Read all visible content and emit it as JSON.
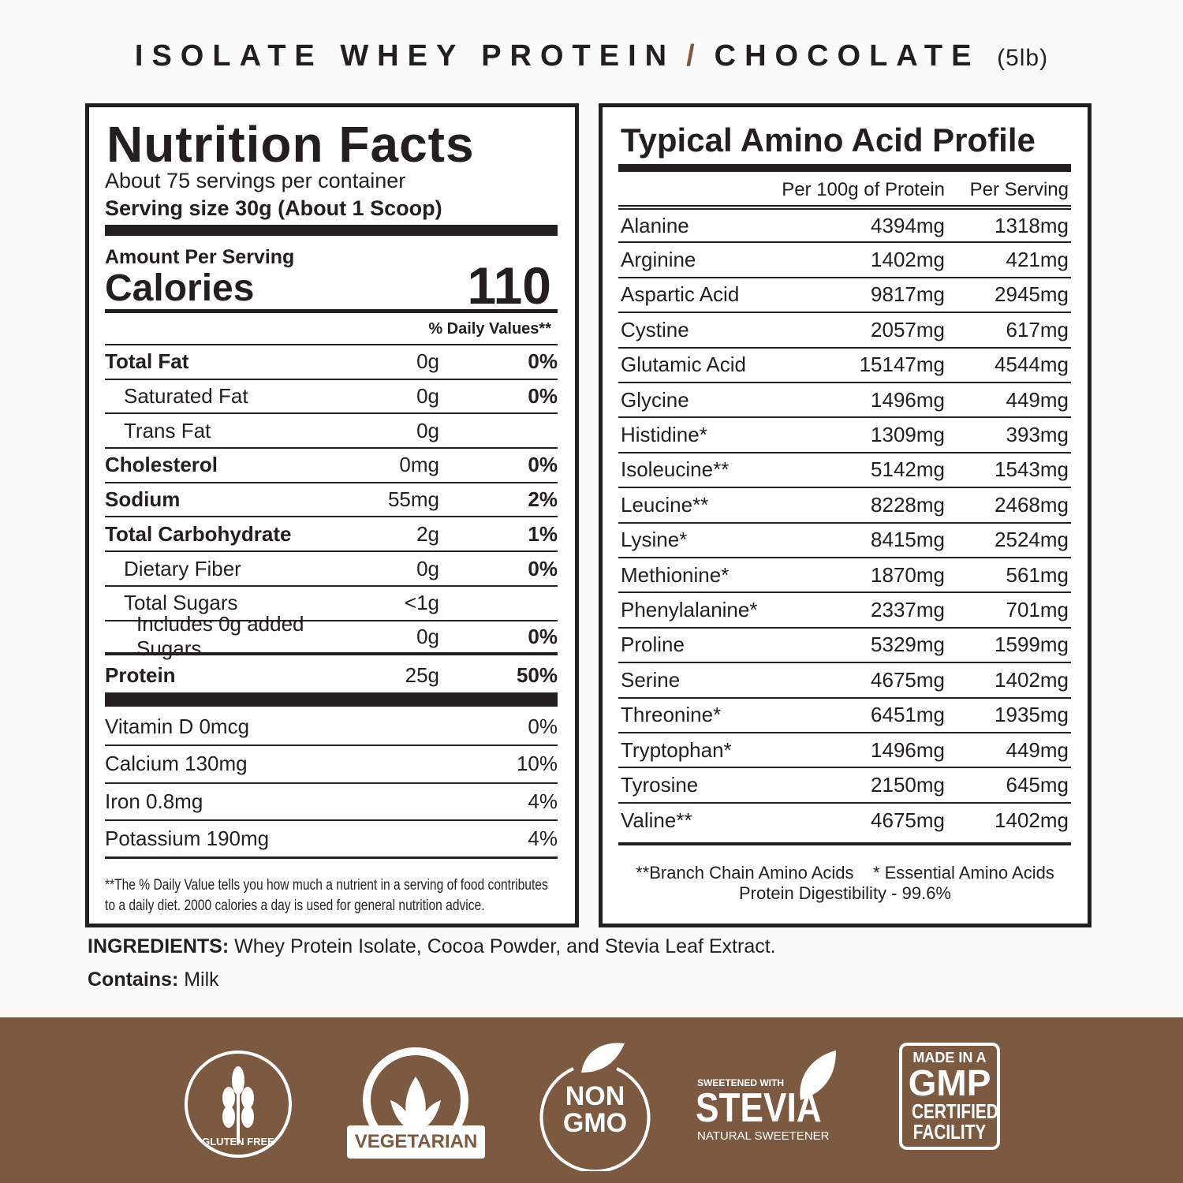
{
  "title": {
    "product": "ISOLATE WHEY PROTEIN",
    "separator": "/",
    "flavor": "CHOCOLATE",
    "size": "(5lb)"
  },
  "nutrition": {
    "heading": "Nutrition Facts",
    "servings": "About 75 servings per container",
    "serving_size": "Serving size 30g (About 1 Scoop)",
    "amount_label": "Amount Per Serving",
    "calories_label": "Calories",
    "calories": "110",
    "dv_header": "% Daily Values**",
    "rows": [
      {
        "name": "Total Fat",
        "amount": "0g",
        "dv": "0%",
        "bold": true,
        "indent": 0
      },
      {
        "name": "Saturated Fat",
        "amount": "0g",
        "dv": "0%",
        "bold": false,
        "indent": 1
      },
      {
        "name": "Trans Fat",
        "amount": "0g",
        "dv": "",
        "bold": false,
        "indent": 1
      },
      {
        "name": "Cholesterol",
        "amount": "0mg",
        "dv": "0%",
        "bold": true,
        "indent": 0
      },
      {
        "name": "Sodium",
        "amount": "55mg",
        "dv": "2%",
        "bold": true,
        "indent": 0
      },
      {
        "name": "Total Carbohydrate",
        "amount": "2g",
        "dv": "1%",
        "bold": true,
        "indent": 0
      },
      {
        "name": "Dietary Fiber",
        "amount": "0g",
        "dv": "0%",
        "bold": false,
        "indent": 1
      },
      {
        "name": "Total Sugars",
        "amount": "<1g",
        "dv": "",
        "bold": false,
        "indent": 1
      },
      {
        "name": "Includes 0g added Sugars",
        "amount": "0g",
        "dv": "0%",
        "bold": false,
        "indent": 2
      },
      {
        "name": "Protein",
        "amount": "25g",
        "dv": "50%",
        "bold": true,
        "indent": 0
      }
    ],
    "vitamins": [
      {
        "name": "Vitamin D 0mcg",
        "dv": "0%"
      },
      {
        "name": "Calcium 130mg",
        "dv": "10%"
      },
      {
        "name": "Iron 0.8mg",
        "dv": "4%"
      },
      {
        "name": "Potassium 190mg",
        "dv": "4%"
      }
    ],
    "footnote_1": "**The % Daily Value tells you how much a nutrient in a  serving of food contributes",
    "footnote_2": "to a daily diet. 2000 calories a day is used for general nutrition advice."
  },
  "amino": {
    "heading": "Typical Amino Acid Profile",
    "col_per100": "Per 100g of Protein",
    "col_serving": "Per Serving",
    "rows": [
      [
        "Alanine",
        "4394mg",
        "1318mg"
      ],
      [
        "Arginine",
        "1402mg",
        "421mg"
      ],
      [
        "Aspartic Acid",
        "9817mg",
        "2945mg"
      ],
      [
        "Cystine",
        "2057mg",
        "617mg"
      ],
      [
        "Glutamic Acid",
        "15147mg",
        "4544mg"
      ],
      [
        "Glycine",
        "1496mg",
        "449mg"
      ],
      [
        "Histidine*",
        "1309mg",
        "393mg"
      ],
      [
        "Isoleucine**",
        "5142mg",
        "1543mg"
      ],
      [
        "Leucine**",
        "8228mg",
        "2468mg"
      ],
      [
        "Lysine*",
        "8415mg",
        "2524mg"
      ],
      [
        "Methionine*",
        "1870mg",
        "561mg"
      ],
      [
        "Phenylalanine*",
        "2337mg",
        "701mg"
      ],
      [
        "Proline",
        "5329mg",
        "1599mg"
      ],
      [
        "Serine",
        "4675mg",
        "1402mg"
      ],
      [
        "Threonine*",
        "6451mg",
        "1935mg"
      ],
      [
        "Tryptophan*",
        "1496mg",
        "449mg"
      ],
      [
        "Tyrosine",
        "2150mg",
        "645mg"
      ],
      [
        "Valine**",
        "4675mg",
        "1402mg"
      ]
    ],
    "note_bcaa": "**Branch Chain Amino Acids",
    "note_eaa": "* Essential Amino Acids",
    "digestibility": "Protein Digestibility - 99.6%"
  },
  "ingredients": {
    "label": "INGREDIENTS:",
    "text": " Whey Protein Isolate, Cocoa Powder, and Stevia Leaf Extract.",
    "contains_label": "Contains:",
    "contains": " Milk"
  },
  "badges": {
    "gluten_free": "GLUTEN FREE",
    "vegetarian_arc": "VEGETARIAN",
    "vegetarian": "VEGETARIAN",
    "non": "NON",
    "gmo": "GMO",
    "stevia_top": "SWEETENED WITH",
    "stevia": "STEVIA",
    "stevia_bottom": "NATURAL SWEETENER",
    "gmp_1": "MADE IN A",
    "gmp_2": "GMP",
    "gmp_3": "CERTIFIED",
    "gmp_4": "FACILITY"
  },
  "colors": {
    "brand_brown": "#7b5a41",
    "ink": "#231f20"
  }
}
